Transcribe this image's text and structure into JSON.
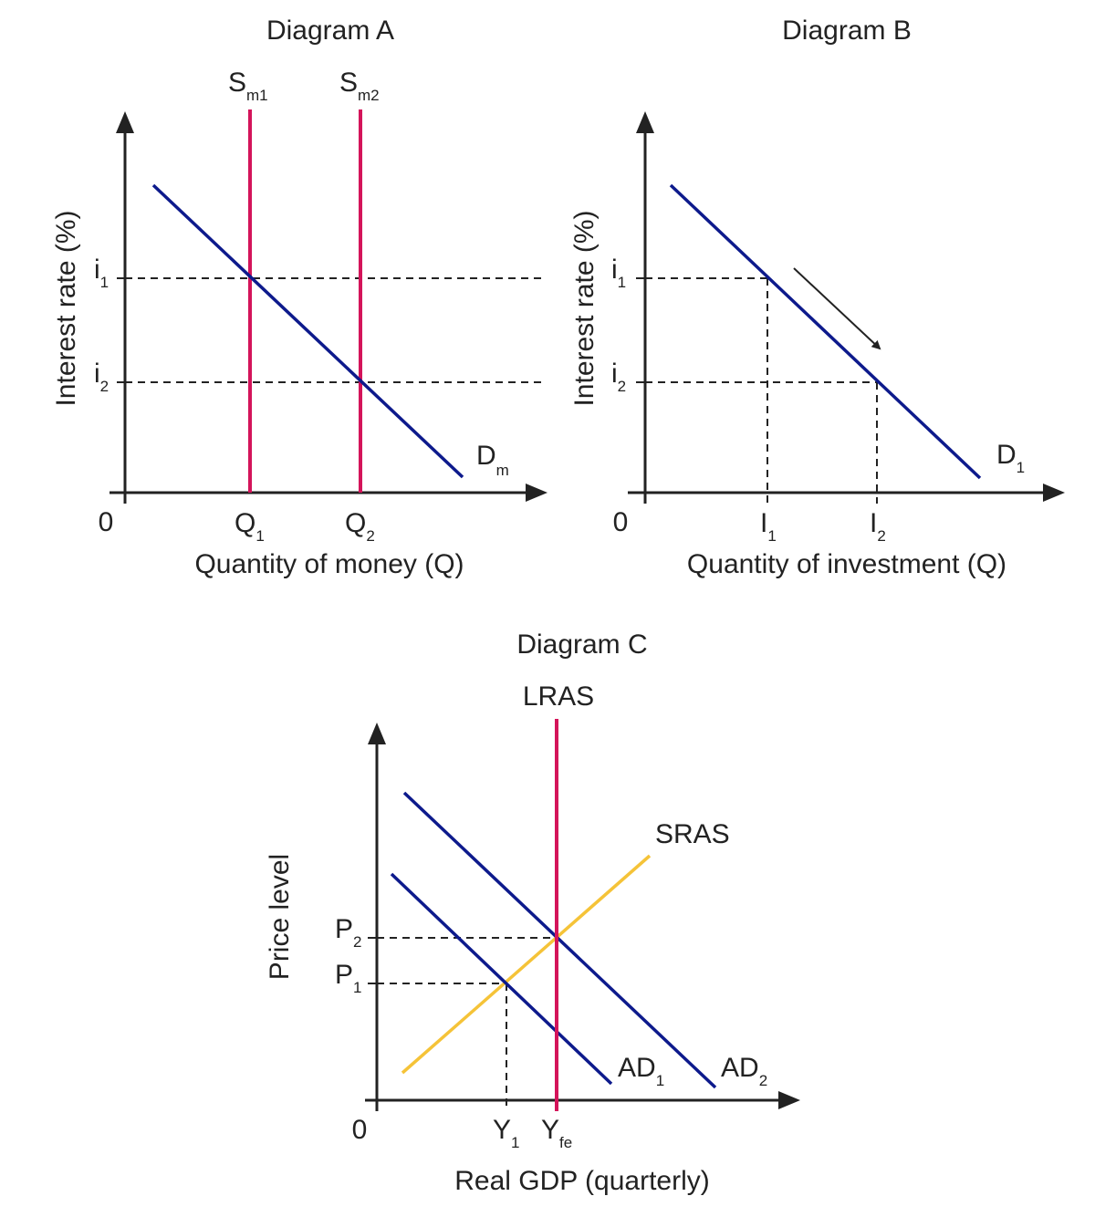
{
  "colors": {
    "demand": "#0d1a8c",
    "supply": "#d4145a",
    "sras": "#f5c338",
    "ink": "#222222"
  },
  "diagram_a": {
    "title": "Diagram A",
    "y_axis": "Interest rate (%)",
    "x_axis": "Quantity of money (Q)",
    "origin": "0",
    "i1": {
      "main": "i",
      "sub": "1"
    },
    "i2": {
      "main": "i",
      "sub": "2"
    },
    "q1": {
      "main": "Q",
      "sub": "1"
    },
    "q2": {
      "main": "Q",
      "sub": "2"
    },
    "sm1": {
      "main": "S",
      "sub": "m1"
    },
    "sm2": {
      "main": "S",
      "sub": "m2"
    },
    "dm": {
      "main": "D",
      "sub": "m"
    }
  },
  "diagram_b": {
    "title": "Diagram B",
    "y_axis": "Interest rate (%)",
    "x_axis": "Quantity of investment (Q)",
    "origin": "0",
    "i1": {
      "main": "i",
      "sub": "1"
    },
    "i2": {
      "main": "i",
      "sub": "2"
    },
    "I1": {
      "main": "I",
      "sub": "1"
    },
    "I2": {
      "main": "I",
      "sub": "2"
    },
    "d1": {
      "main": "D",
      "sub": "1"
    }
  },
  "diagram_c": {
    "title": "Diagram C",
    "y_axis": "Price level",
    "x_axis": "Real GDP (quarterly)",
    "origin": "0",
    "lras": "LRAS",
    "sras": "SRAS",
    "p1": {
      "main": "P",
      "sub": "1"
    },
    "p2": {
      "main": "P",
      "sub": "2"
    },
    "y1": {
      "main": "Y",
      "sub": "1"
    },
    "yfe": {
      "main": "Y",
      "sub": "fe"
    },
    "ad1": {
      "main": "AD",
      "sub": "1"
    },
    "ad2": {
      "main": "AD",
      "sub": "2"
    }
  }
}
